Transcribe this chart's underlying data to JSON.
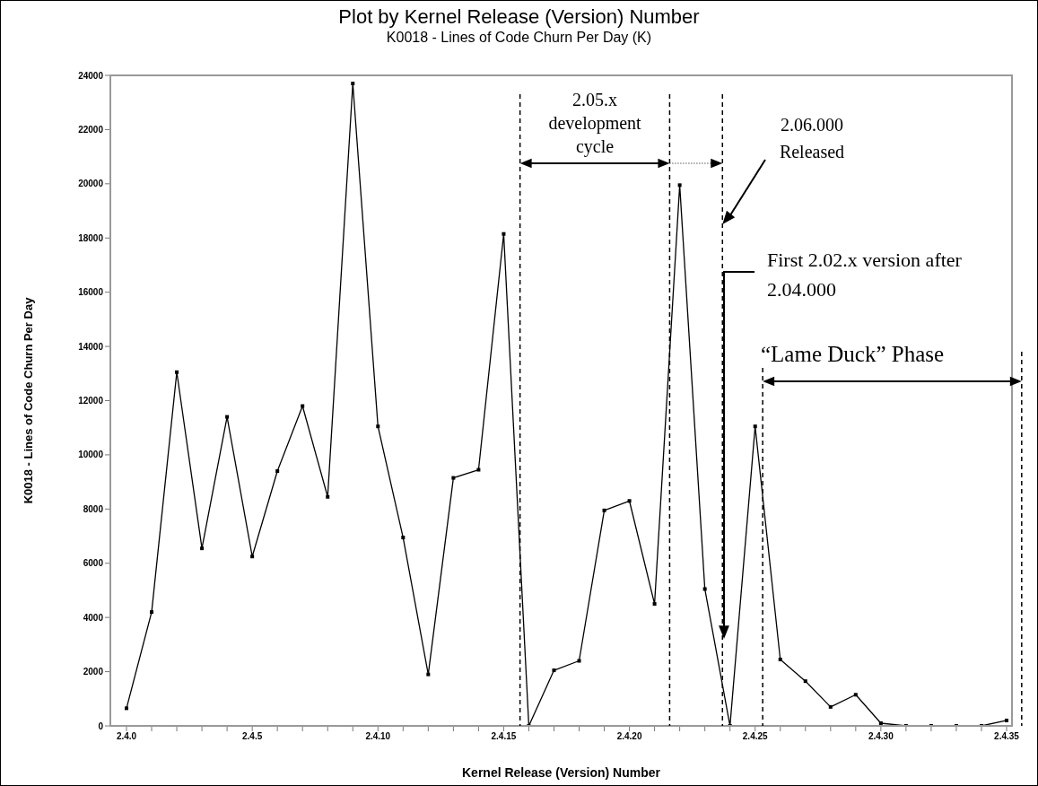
{
  "chart_data": {
    "type": "line",
    "title": "Plot by Kernel Release (Version) Number",
    "subtitle": "K0018 - Lines of Code Churn Per Day (K)",
    "xlabel": "Kernel Release (Version) Number",
    "ylabel": "K0018 - Lines of Code Churn Per Day",
    "categories": [
      "2.4.0",
      null,
      null,
      null,
      null,
      "2.4.5",
      null,
      null,
      null,
      null,
      "2.4.10",
      null,
      null,
      null,
      null,
      "2.4.15",
      null,
      null,
      null,
      null,
      "2.4.20",
      null,
      null,
      null,
      null,
      "2.4.25",
      null,
      null,
      null,
      null,
      "2.4.30",
      null,
      null,
      null,
      null,
      "2.4.35"
    ],
    "series": [
      {
        "color": "#000000",
        "values": [
          650,
          4200,
          13050,
          6550,
          11400,
          6250,
          9400,
          11800,
          8450,
          23700,
          11050,
          6950,
          1900,
          9150,
          9450,
          18150,
          0,
          2050,
          2400,
          7950,
          8300,
          4500,
          19950,
          5050,
          0,
          11050,
          2450,
          1650,
          700,
          1150,
          100,
          0,
          0,
          0,
          0,
          200
        ]
      }
    ],
    "ylim": [
      0,
      24000
    ],
    "yticks": [
      0,
      2000,
      4000,
      6000,
      8000,
      10000,
      12000,
      14000,
      16000,
      18000,
      20000,
      22000,
      24000
    ],
    "marker": "square",
    "line_style": "solid",
    "annotations": [
      "2.05.x development cycle",
      "2.06.000 Released",
      "First 2.02.x version after 2.04.000",
      "“Lame Duck” Phase"
    ]
  }
}
